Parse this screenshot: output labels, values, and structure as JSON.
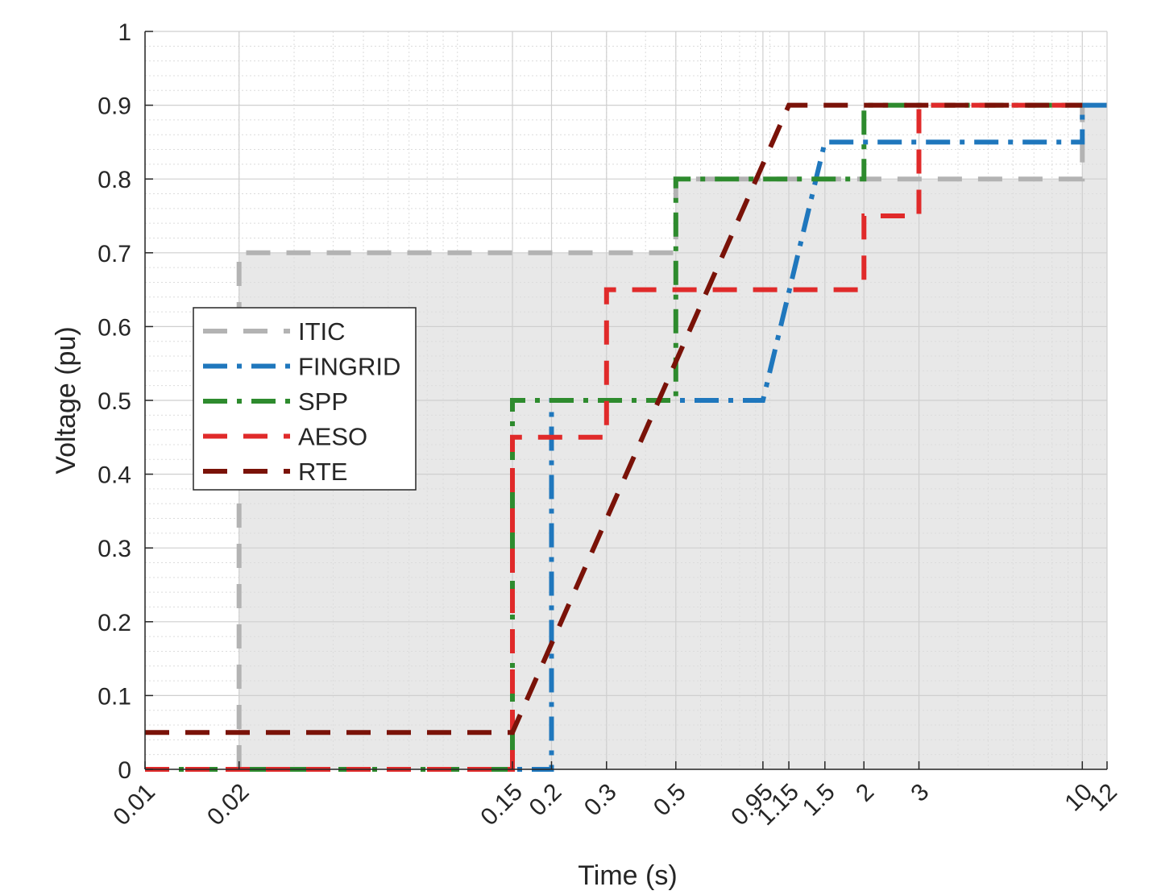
{
  "chart_data": {
    "type": "line",
    "title": "",
    "xlabel": "Time (s)",
    "ylabel": "Voltage (pu)",
    "xscale": "log",
    "xlim": [
      0.01,
      12
    ],
    "ylim": [
      0,
      1
    ],
    "xticks": [
      0.01,
      0.02,
      0.15,
      0.2,
      0.3,
      0.5,
      0.95,
      1.15,
      1.5,
      2,
      3,
      10,
      12
    ],
    "xtick_labels": [
      "0.01",
      "0.02",
      "0.15",
      "0.2",
      "0.3",
      "0.5",
      "0.95",
      "1.15",
      "1.5",
      "2",
      "3",
      "10",
      "12"
    ],
    "yticks": [
      0,
      0.1,
      0.2,
      0.3,
      0.4,
      0.5,
      0.6,
      0.7,
      0.8,
      0.9,
      1
    ],
    "ytick_labels": [
      "0",
      "0.1",
      "0.2",
      "0.3",
      "0.4",
      "0.5",
      "0.6",
      "0.7",
      "0.8",
      "0.9",
      "1"
    ],
    "grid": true,
    "minor_grid": true,
    "legend_position": "middle-left",
    "shaded_region": {
      "color": "#e8e8e8",
      "boundary": [
        [
          0.02,
          0
        ],
        [
          0.02,
          0.7
        ],
        [
          0.5,
          0.7
        ],
        [
          0.5,
          0.8
        ],
        [
          10,
          0.8
        ],
        [
          10,
          0.9
        ],
        [
          12,
          0.9
        ],
        [
          12,
          0
        ]
      ]
    },
    "series": [
      {
        "name": "ITIC",
        "color": "#b3b3b3",
        "dash": "dashed",
        "x": [
          0.02,
          0.02,
          0.5,
          0.5,
          10,
          10,
          12
        ],
        "y": [
          0,
          0.7,
          0.7,
          0.8,
          0.8,
          0.9,
          0.9
        ]
      },
      {
        "name": "FINGRID",
        "color": "#1f77bd",
        "dash": "dashdot",
        "x": [
          0.01,
          0.2,
          0.2,
          0.5,
          0.5,
          0.95,
          1.5,
          10,
          10,
          12
        ],
        "y": [
          0,
          0,
          0.5,
          0.5,
          0.5,
          0.5,
          0.85,
          0.85,
          0.9,
          0.9
        ]
      },
      {
        "name": "SPP",
        "color": "#2e8b2e",
        "dash": "dashdot",
        "x": [
          0.01,
          0.15,
          0.15,
          0.5,
          0.5,
          2,
          2,
          10
        ],
        "y": [
          0,
          0,
          0.5,
          0.5,
          0.8,
          0.8,
          0.9,
          0.9
        ]
      },
      {
        "name": "AESO",
        "color": "#e02a2a",
        "dash": "dashed",
        "x": [
          0.01,
          0.15,
          0.15,
          0.3,
          0.3,
          2,
          2,
          3,
          3,
          10
        ],
        "y": [
          0,
          0,
          0.45,
          0.45,
          0.65,
          0.65,
          0.75,
          0.75,
          0.9,
          0.9
        ]
      },
      {
        "name": "RTE",
        "color": "#7a1208",
        "dash": "dashed",
        "x": [
          0.01,
          0.15,
          1.15,
          10
        ],
        "y": [
          0.05,
          0.05,
          0.9,
          0.9
        ]
      }
    ]
  }
}
